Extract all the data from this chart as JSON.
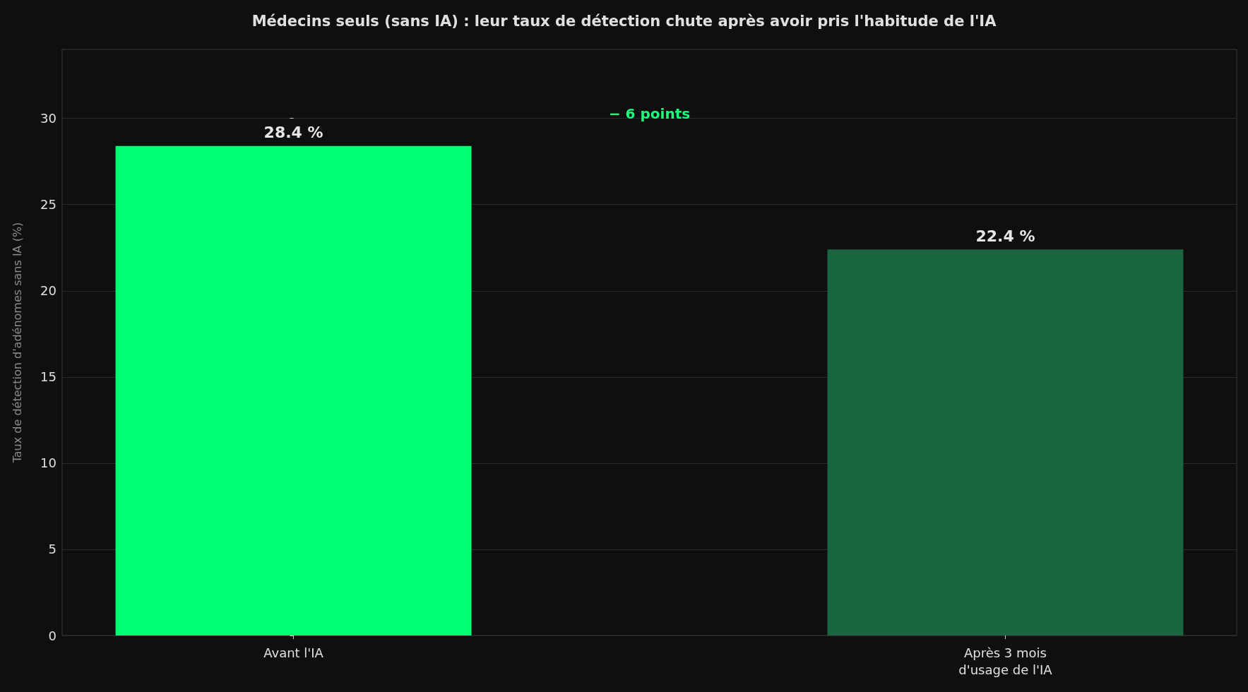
{
  "chart_data": {
    "type": "bar",
    "title": "Médecins seuls (sans IA) : leur taux de détection chute après avoir pris l'habitude de l'IA",
    "ylabel": "Taux de détection d'adénomes sans IA (%)",
    "categories": [
      "Avant l'IA",
      "Après 3 mois\nd'usage de l'IA"
    ],
    "values": [
      28.4,
      22.4
    ],
    "colors": [
      "#00ff73",
      "#1a6640"
    ],
    "value_labels": [
      "28.4 %",
      "22.4 %"
    ],
    "ylim": [
      0,
      34
    ],
    "yticks": [
      0,
      5,
      10,
      15,
      20,
      25,
      30
    ],
    "grid": "y",
    "annotations": [
      "− 6 points"
    ]
  }
}
